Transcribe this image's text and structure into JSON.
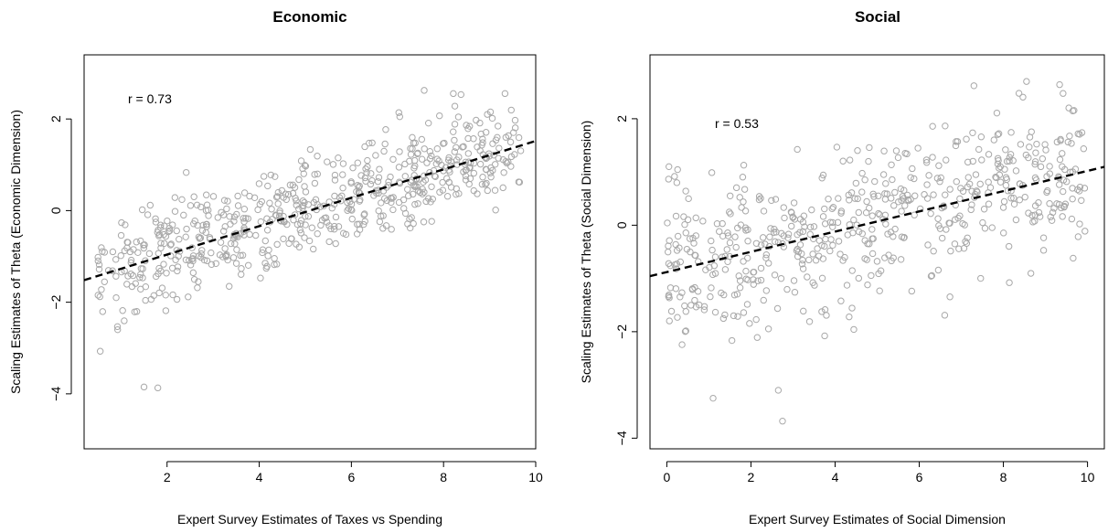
{
  "chart_data": [
    {
      "type": "scatter",
      "title": "Economic",
      "xlabel": "Expert Survey Estimates of Taxes vs Spending",
      "ylabel": "Scaling Estimates of Theta (Economic Dimension)",
      "xlim": [
        0.2,
        10.0
      ],
      "ylim": [
        -5.2,
        3.4
      ],
      "xticks": [
        2,
        4,
        6,
        8,
        10
      ],
      "yticks": [
        -4,
        -2,
        0,
        2
      ],
      "annotation": "r = 0.73",
      "fit_line": {
        "intercept": -1.58,
        "slope": 0.31
      },
      "grid": false,
      "point_style": "open circles, grey",
      "line_style": "dashed, black",
      "seed": 73,
      "n_points": 620,
      "x_range_data": [
        0.5,
        9.7
      ],
      "y_noise_sd": 0.55,
      "outliers": [
        [
          1.5,
          -3.85
        ],
        [
          1.8,
          -3.87
        ],
        [
          0.55,
          -3.07
        ],
        [
          7.05,
          2.05
        ],
        [
          8.95,
          2.1
        ],
        [
          9.65,
          0.62
        ]
      ]
    },
    {
      "type": "scatter",
      "title": "Social",
      "xlabel": "Expert Survey Estimates of Social Dimension",
      "ylabel": "Scaling Estimates of Theta (Social Dimension)",
      "xlim": [
        -0.4,
        10.4
      ],
      "ylim": [
        -4.2,
        3.2
      ],
      "xticks": [
        0,
        2,
        4,
        6,
        8,
        10
      ],
      "yticks": [
        -4,
        -2,
        0,
        2
      ],
      "annotation": "r = 0.53",
      "fit_line": {
        "intercept": -0.88,
        "slope": 0.19
      },
      "grid": false,
      "point_style": "open circles, grey",
      "line_style": "dashed, black",
      "seed": 53,
      "n_points": 560,
      "x_range_data": [
        0.0,
        10.0
      ],
      "y_noise_sd": 0.72,
      "outliers": [
        [
          2.75,
          -3.68
        ],
        [
          2.65,
          -3.1
        ],
        [
          1.1,
          -3.25
        ],
        [
          8.55,
          2.7
        ],
        [
          7.3,
          2.62
        ],
        [
          0.05,
          1.1
        ]
      ]
    }
  ]
}
